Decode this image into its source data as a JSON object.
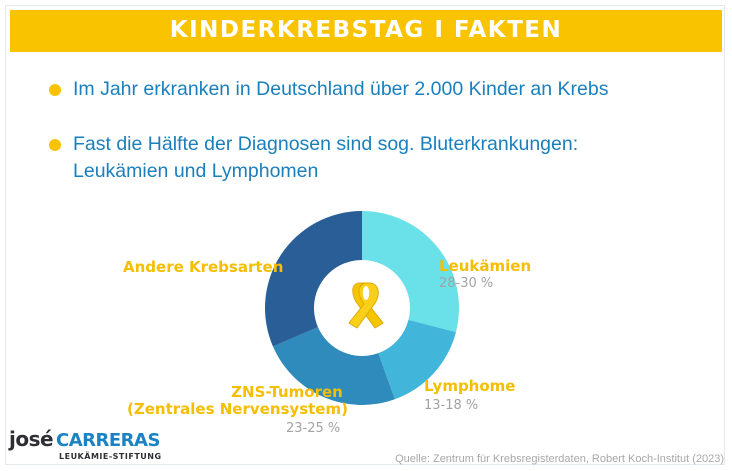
{
  "banner": {
    "title": "KINDERKREBSTAG I FAKTEN"
  },
  "facts": [
    {
      "text": "Im Jahr erkranken in Deutschland über 2.000 Kinder an Krebs"
    },
    {
      "line1": "Fast die Hälfte der Diagnosen sind sog. Bluterkrankungen:",
      "line2": "Leukämien und Lymphomen"
    }
  ],
  "chart_data": {
    "type": "pie",
    "style": "donut",
    "center_icon": "awareness-ribbon-icon",
    "slices": [
      {
        "name": "Leukämien",
        "value_label": "28-30 %",
        "value": 29,
        "color": "#6ae1e8"
      },
      {
        "name": "Lymphome",
        "value_label": "13-18 %",
        "value": 15.5,
        "color": "#42b6da"
      },
      {
        "name_lines": [
          "ZNS-Tumoren",
          "(Zentrales Nervensystem)"
        ],
        "value_label": "23-25 %",
        "value": 24,
        "color": "#2e8bbb"
      },
      {
        "name": "Andere Krebsarten",
        "value_label": "",
        "value": 31.5,
        "color": "#2a5e96"
      }
    ]
  },
  "logo": {
    "brand_1": "josé",
    "brand_2": "CARRERAS",
    "sub": "LEUKÄMIE-STIFTUNG"
  },
  "source": "Quelle: Zentrum für Krebsregisterdaten, Robert Koch-Institut (2023)",
  "colors": {
    "accent": "#f9c300",
    "text_blue": "#1a7fbd",
    "label_gold": "#f6be00"
  }
}
